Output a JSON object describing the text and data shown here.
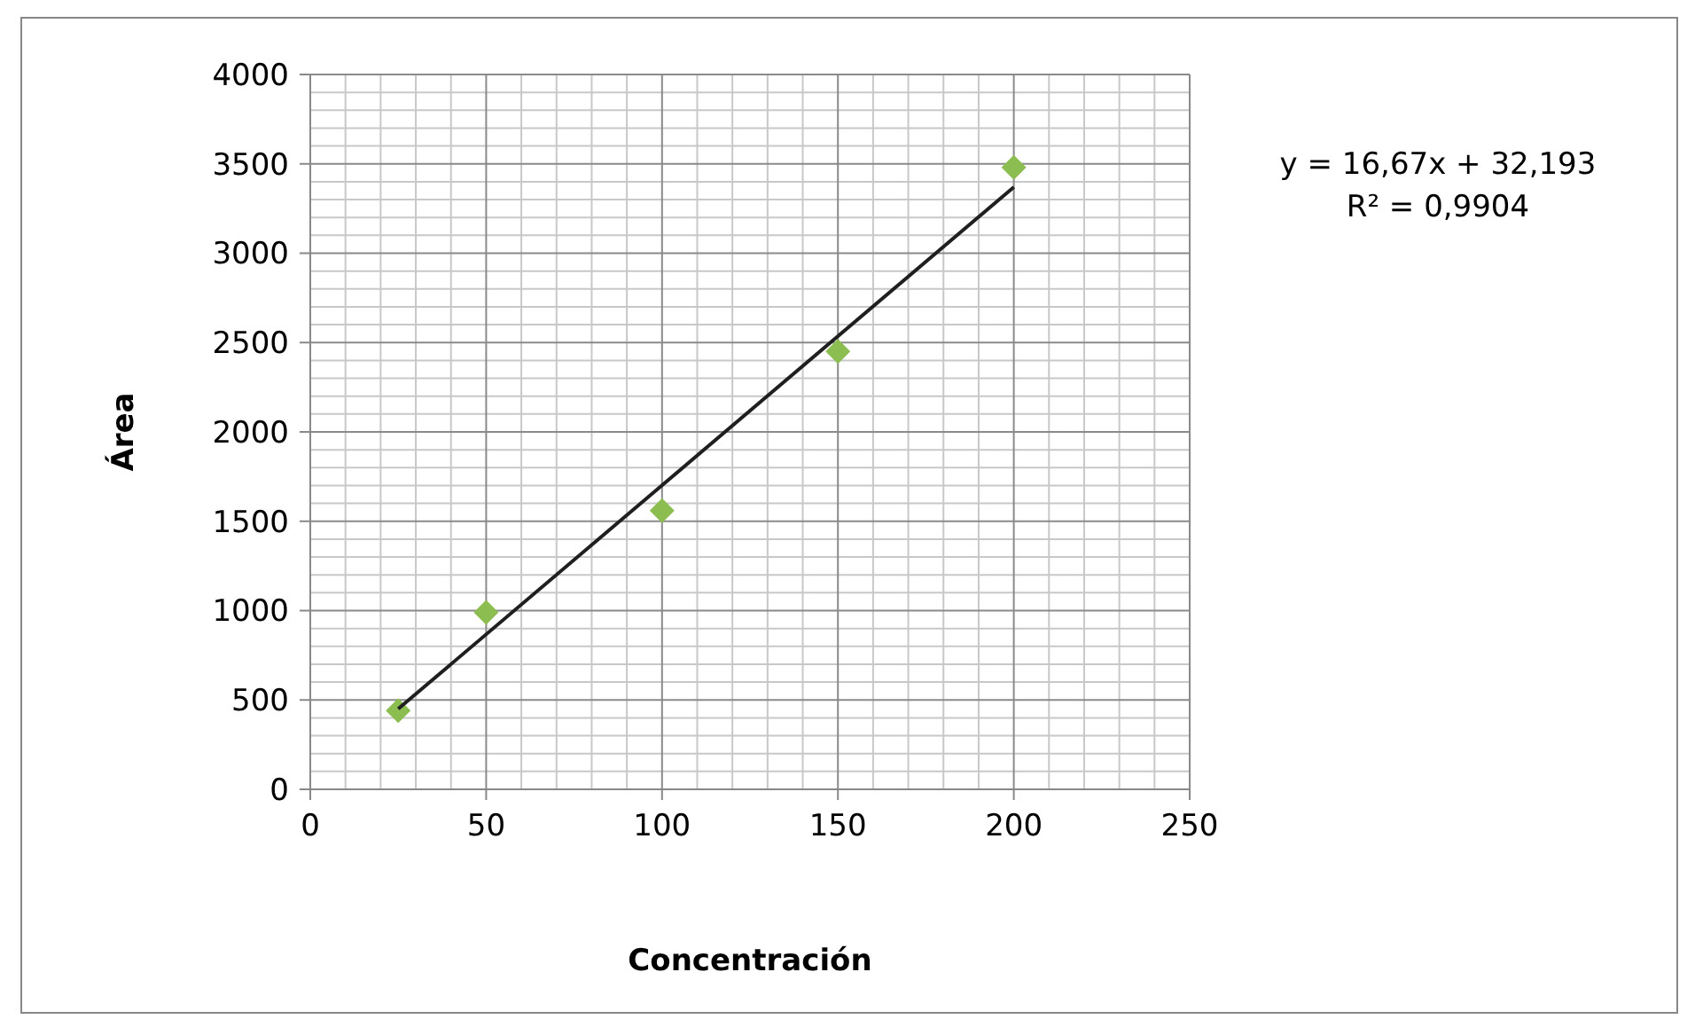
{
  "chart_data": {
    "type": "scatter",
    "xlabel": "Concentración",
    "ylabel": "Área",
    "annotations": [
      "y = 16,67x + 32,193",
      "R² = 0,9904"
    ],
    "series": [
      {
        "color": "#8cbd51",
        "x": [
          25,
          50,
          100,
          150,
          200
        ],
        "values": [
          440,
          990,
          1560,
          2450,
          3480
        ],
        "marker": "diamond"
      },
      {
        "type": "line",
        "color": "#1f1f1f",
        "x": [
          25,
          200
        ],
        "values": [
          450,
          3370
        ],
        "marker": "none",
        "line_style": "solid"
      }
    ],
    "xlim": [
      0,
      250
    ],
    "xticks": [
      0,
      50,
      100,
      150,
      200,
      250
    ],
    "ylim": [
      0,
      4000
    ],
    "yticks": [
      0,
      500,
      1000,
      1500,
      2000,
      2500,
      3000,
      3500,
      4000
    ],
    "grid": true
  }
}
